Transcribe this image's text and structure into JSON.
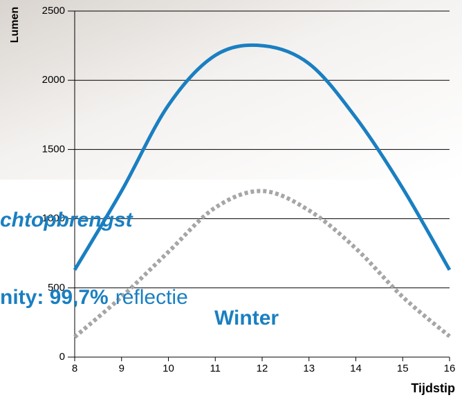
{
  "chart_data": {
    "type": "line",
    "y_label": "Lumen",
    "x_label": "Tijdstip",
    "x": [
      8,
      9,
      10,
      11,
      12,
      13,
      14,
      15,
      16
    ],
    "xlim": [
      8,
      16
    ],
    "xticks": [
      8,
      9,
      10,
      11,
      12,
      13,
      14,
      15,
      16
    ],
    "ylim": [
      0,
      2500
    ],
    "yticks": [
      0,
      500,
      1000,
      1500,
      2000,
      2500
    ],
    "grid": true,
    "series": [
      {
        "color": "#1a7fc1",
        "style": "solid",
        "values": [
          630,
          1200,
          1820,
          2180,
          2250,
          2120,
          1730,
          1220,
          630
        ]
      },
      {
        "color": "#a6a6a6",
        "style": "dotted",
        "values": [
          145,
          435,
          760,
          1080,
          1200,
          1060,
          785,
          435,
          150
        ]
      }
    ],
    "annotations": [
      "chtopbrengst",
      "nity: 99,7%",
      "reflectie",
      "Winter"
    ]
  }
}
